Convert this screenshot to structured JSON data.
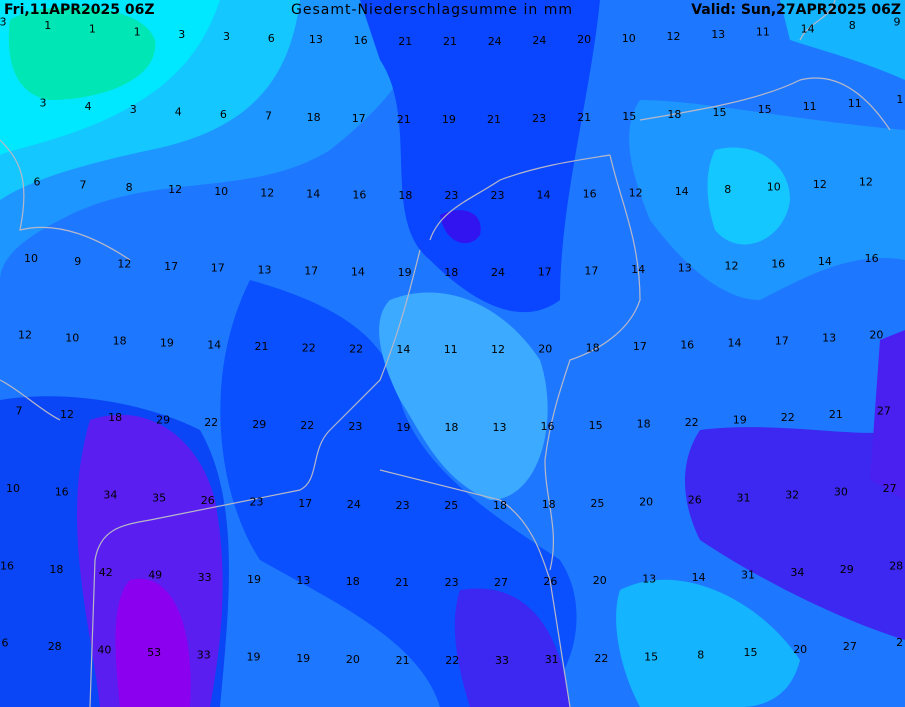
{
  "header": {
    "left": "Fri,11APR2025 06Z",
    "title": "Gesamt-Niederschlagsumme in mm",
    "right": "Valid: Sun,27APR2025 06Z"
  },
  "rows": [
    [
      3,
      1,
      1,
      1,
      3,
      3,
      6,
      13,
      16,
      21,
      21,
      24,
      24,
      20,
      10,
      12,
      13,
      11,
      14,
      8,
      9
    ],
    [
      3,
      4,
      3,
      4,
      6,
      7,
      18,
      17,
      21,
      19,
      21,
      23,
      21,
      15,
      18,
      15,
      15,
      11,
      11,
      1
    ],
    [
      6,
      7,
      8,
      12,
      10,
      12,
      14,
      16,
      18,
      23,
      23,
      14,
      16,
      12,
      14,
      8,
      10,
      12,
      12
    ],
    [
      10,
      9,
      12,
      17,
      17,
      13,
      17,
      14,
      19,
      18,
      24,
      17,
      17,
      14,
      13,
      12,
      16,
      14,
      16
    ],
    [
      12,
      10,
      18,
      19,
      14,
      21,
      22,
      22,
      14,
      11,
      12,
      20,
      18,
      17,
      16,
      14,
      17,
      13,
      20
    ],
    [
      7,
      12,
      18,
      29,
      22,
      29,
      22,
      23,
      19,
      18,
      13,
      16,
      15,
      18,
      22,
      19,
      22,
      21,
      27
    ],
    [
      10,
      16,
      34,
      35,
      26,
      23,
      17,
      24,
      23,
      25,
      18,
      18,
      25,
      20,
      26,
      31,
      32,
      30,
      27
    ],
    [
      16,
      18,
      42,
      49,
      33,
      19,
      13,
      18,
      21,
      23,
      27,
      26,
      20,
      13,
      14,
      31,
      34,
      29,
      28
    ],
    [
      6,
      28,
      40,
      53,
      33,
      19,
      19,
      20,
      21,
      22,
      33,
      31,
      22,
      15,
      8,
      15,
      20,
      27,
      2
    ]
  ]
}
